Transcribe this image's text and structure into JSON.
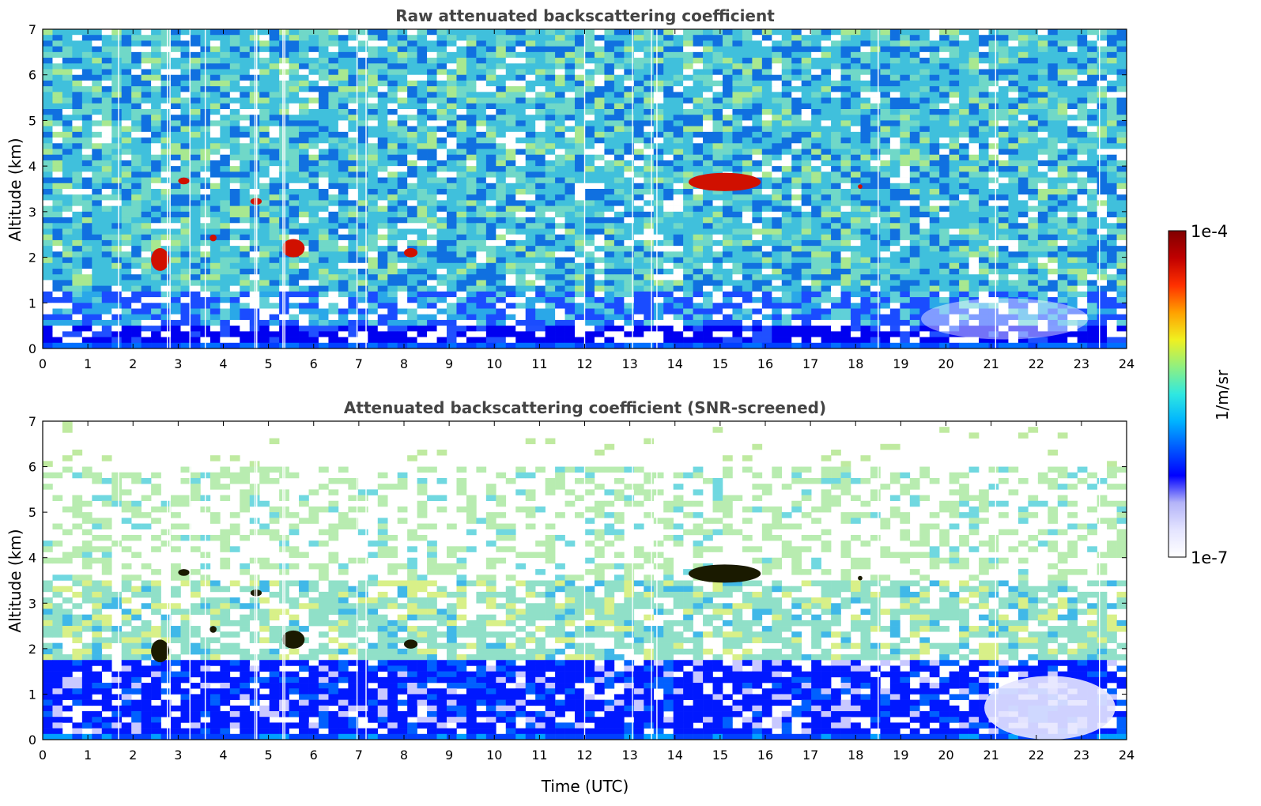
{
  "figure": {
    "colormap": [
      "#ffffff",
      "#e4e4ff",
      "#b4b4f8",
      "#0000ff",
      "#0058ff",
      "#00b4ff",
      "#30e8e0",
      "#90f080",
      "#f0f020",
      "#ffa000",
      "#ff3000",
      "#c00000",
      "#800000"
    ]
  },
  "chart_data": [
    {
      "type": "heatmap",
      "title": "Raw attenuated backscattering coefficient",
      "xlabel": "",
      "ylabel": "Altitude (km)",
      "xlim": [
        0,
        24
      ],
      "ylim": [
        0,
        7
      ],
      "x_ticks": [
        "0",
        "1",
        "2",
        "3",
        "4",
        "5",
        "6",
        "7",
        "8",
        "9",
        "10",
        "11",
        "12",
        "13",
        "14",
        "15",
        "16",
        "17",
        "18",
        "19",
        "20",
        "21",
        "22",
        "23",
        "24"
      ],
      "y_ticks": [
        "0",
        "1",
        "2",
        "3",
        "4",
        "5",
        "6",
        "7"
      ],
      "data_gaps_utc": [
        1.68,
        2.76,
        2.82,
        3.26,
        3.6,
        4.7,
        4.74,
        5.32,
        5.36,
        6.96,
        7.16,
        12.0,
        13.06,
        13.48,
        13.6,
        18.5,
        21.1,
        23.4
      ],
      "features": [
        {
          "label": "cloud",
          "time_utc": [
            2.4,
            2.8
          ],
          "altitude_km": [
            1.7,
            2.2
          ]
        },
        {
          "label": "cloud",
          "time_utc": [
            3.0,
            3.25
          ],
          "altitude_km": [
            3.6,
            3.75
          ]
        },
        {
          "label": "cloud",
          "time_utc": [
            3.7,
            3.85
          ],
          "altitude_km": [
            2.35,
            2.5
          ]
        },
        {
          "label": "cloud",
          "time_utc": [
            4.6,
            4.85
          ],
          "altitude_km": [
            3.15,
            3.3
          ]
        },
        {
          "label": "cloud",
          "time_utc": [
            5.3,
            5.8
          ],
          "altitude_km": [
            2.0,
            2.4
          ]
        },
        {
          "label": "cloud",
          "time_utc": [
            8.0,
            8.3
          ],
          "altitude_km": [
            2.0,
            2.2
          ]
        },
        {
          "label": "cloud",
          "time_utc": [
            14.3,
            15.9
          ],
          "altitude_km": [
            3.45,
            3.85
          ]
        },
        {
          "label": "cloud",
          "time_utc": [
            18.05,
            18.15
          ],
          "altitude_km": [
            3.5,
            3.6
          ]
        }
      ],
      "boundary_layer_top_km": 0.5
    },
    {
      "type": "heatmap",
      "title": "Attenuated backscattering coefficient (SNR-screened)",
      "xlabel": "Time (UTC)",
      "ylabel": "Altitude (km)",
      "xlim": [
        0,
        24
      ],
      "ylim": [
        0,
        7
      ],
      "x_ticks": [
        "0",
        "1",
        "2",
        "3",
        "4",
        "5",
        "6",
        "7",
        "8",
        "9",
        "10",
        "11",
        "12",
        "13",
        "14",
        "15",
        "16",
        "17",
        "18",
        "19",
        "20",
        "21",
        "22",
        "23",
        "24"
      ],
      "y_ticks": [
        "0",
        "1",
        "2",
        "3",
        "4",
        "5",
        "6",
        "7"
      ],
      "data_gaps_utc": [
        1.68,
        2.76,
        2.82,
        3.26,
        3.6,
        4.7,
        4.74,
        5.32,
        5.36,
        6.96,
        7.16,
        12.0,
        13.06,
        13.48,
        13.6,
        18.5,
        21.1,
        23.4
      ],
      "features": [
        {
          "label": "cloud",
          "time_utc": [
            2.4,
            2.8
          ],
          "altitude_km": [
            1.7,
            2.2
          ]
        },
        {
          "label": "cloud",
          "time_utc": [
            3.0,
            3.25
          ],
          "altitude_km": [
            3.6,
            3.75
          ]
        },
        {
          "label": "cloud",
          "time_utc": [
            3.7,
            3.85
          ],
          "altitude_km": [
            2.35,
            2.5
          ]
        },
        {
          "label": "cloud",
          "time_utc": [
            4.6,
            4.85
          ],
          "altitude_km": [
            3.15,
            3.3
          ]
        },
        {
          "label": "cloud",
          "time_utc": [
            5.3,
            5.8
          ],
          "altitude_km": [
            2.0,
            2.4
          ]
        },
        {
          "label": "cloud",
          "time_utc": [
            8.0,
            8.3
          ],
          "altitude_km": [
            2.0,
            2.2
          ]
        },
        {
          "label": "cloud",
          "time_utc": [
            14.3,
            15.9
          ],
          "altitude_km": [
            3.45,
            3.85
          ]
        },
        {
          "label": "cloud",
          "time_utc": [
            18.05,
            18.15
          ],
          "altitude_km": [
            3.5,
            3.6
          ]
        }
      ],
      "boundary_layer_top_km": 1.8
    }
  ],
  "colorbar": {
    "label": "1/m/sr",
    "max_label": "1e-4",
    "min_label": "1e-7",
    "range": [
      1e-07,
      0.0001
    ],
    "scale": "log"
  }
}
